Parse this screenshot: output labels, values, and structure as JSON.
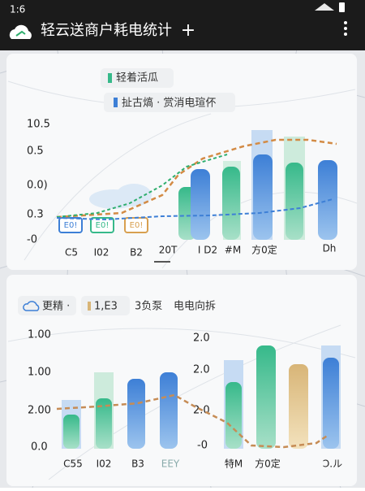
{
  "status_bar": {
    "time": "1:6"
  },
  "app_bar": {
    "title": "轻云送商户耗电统计",
    "action": "+"
  },
  "card_1": {
    "legend": [
      "轻着活瓜",
      "扯古熇 · 赏消电瑄伓"
    ],
    "y_labels": [
      "10.5",
      "0.5",
      "0.0)",
      "0.3",
      "-0"
    ],
    "x_labels": [
      "C5",
      "I02",
      "B2",
      "20T",
      "I D2",
      "#M",
      "方0定",
      "Dh"
    ],
    "cart_labels": [
      "E0!",
      "E0!",
      "E0!"
    ]
  },
  "card_2": {
    "legend": [
      "更精 ·",
      "1,E3",
      "3负泵",
      "电电向拆"
    ],
    "y_labels_left": [
      "1.00",
      "1.00",
      "2.00",
      "0.0"
    ],
    "y_labels_right": [
      "2.0",
      "2.0",
      "2.0",
      "-0"
    ],
    "x_labels": [
      "C55",
      "I02",
      "B3",
      "EEY",
      "特M",
      "方0定",
      "Ͻ.ル"
    ]
  }
}
